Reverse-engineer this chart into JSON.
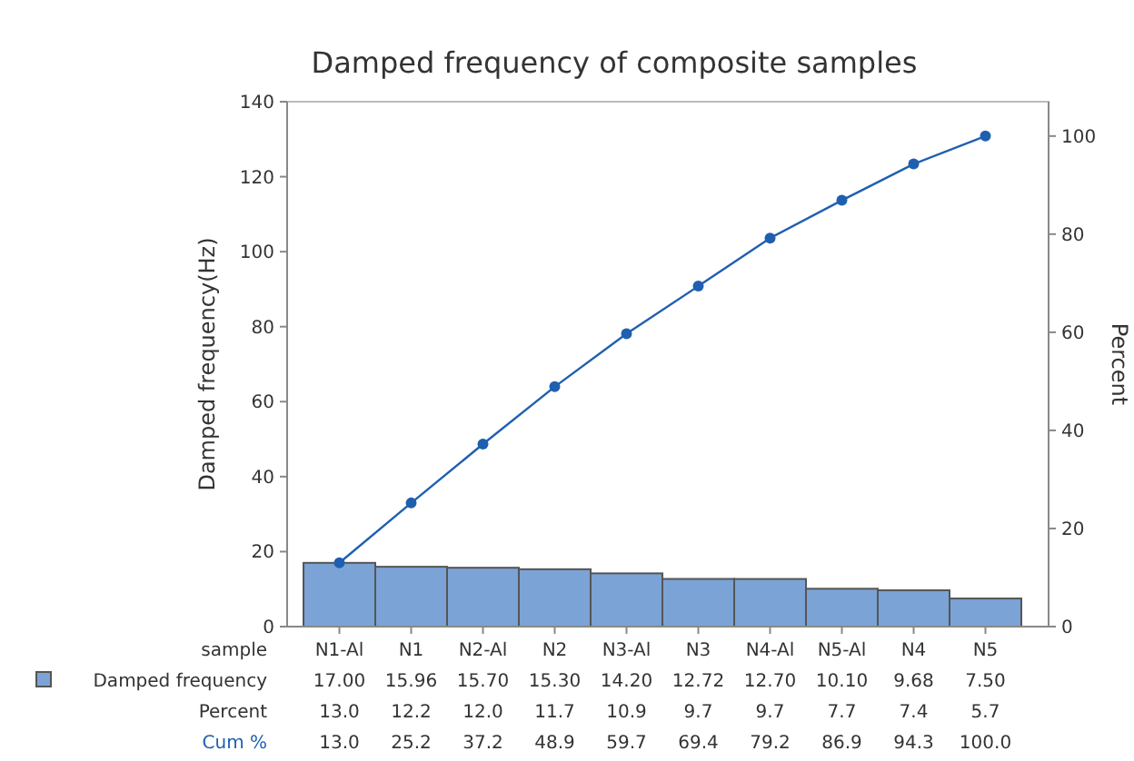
{
  "chart_data": {
    "type": "bar",
    "title": "Damped frequency of composite  samples",
    "xlabel": "sample",
    "ylabel": "Damped frequency(Hz)",
    "y2label": "Percent",
    "categories": [
      "N1-Al",
      "N1",
      "N2-Al",
      "N2",
      "N3-Al",
      "N3",
      "N4-Al",
      "N5-Al",
      "N4",
      "N5"
    ],
    "series": [
      {
        "name": "Damped frequency",
        "color": "#7ba3d6",
        "values": [
          17.0,
          15.96,
          15.7,
          15.3,
          14.2,
          12.72,
          12.7,
          10.1,
          9.68,
          7.5
        ],
        "value_labels": [
          "17.00",
          "15.96",
          "15.70",
          "15.30",
          "14.20",
          "12.72",
          "12.70",
          "10.10",
          "9.68",
          "7.50"
        ]
      },
      {
        "name": "Cum %",
        "type": "line",
        "axis": "y2",
        "color": "#1f5fb0",
        "values": [
          13.0,
          25.2,
          37.2,
          48.9,
          59.7,
          69.4,
          79.2,
          86.9,
          94.3,
          100.0
        ],
        "value_labels": [
          "13.0",
          "25.2",
          "37.2",
          "48.9",
          "59.7",
          "69.4",
          "79.2",
          "86.9",
          "94.3",
          "100.0"
        ]
      }
    ],
    "ylim": [
      0,
      140
    ],
    "yticks": [
      0,
      20,
      40,
      60,
      80,
      100,
      120,
      140
    ],
    "y2lim": [
      0,
      107
    ],
    "y2ticks": [
      0,
      20,
      40,
      60,
      80,
      100
    ],
    "annotations": [
      "Percent",
      "13.0",
      "12.2",
      "12.0",
      "11.7",
      "10.9",
      "9.7",
      "9.7",
      "7.7",
      "7.4",
      "5.7"
    ],
    "data_labels": true,
    "marker": "circle",
    "line_style": "solid"
  }
}
